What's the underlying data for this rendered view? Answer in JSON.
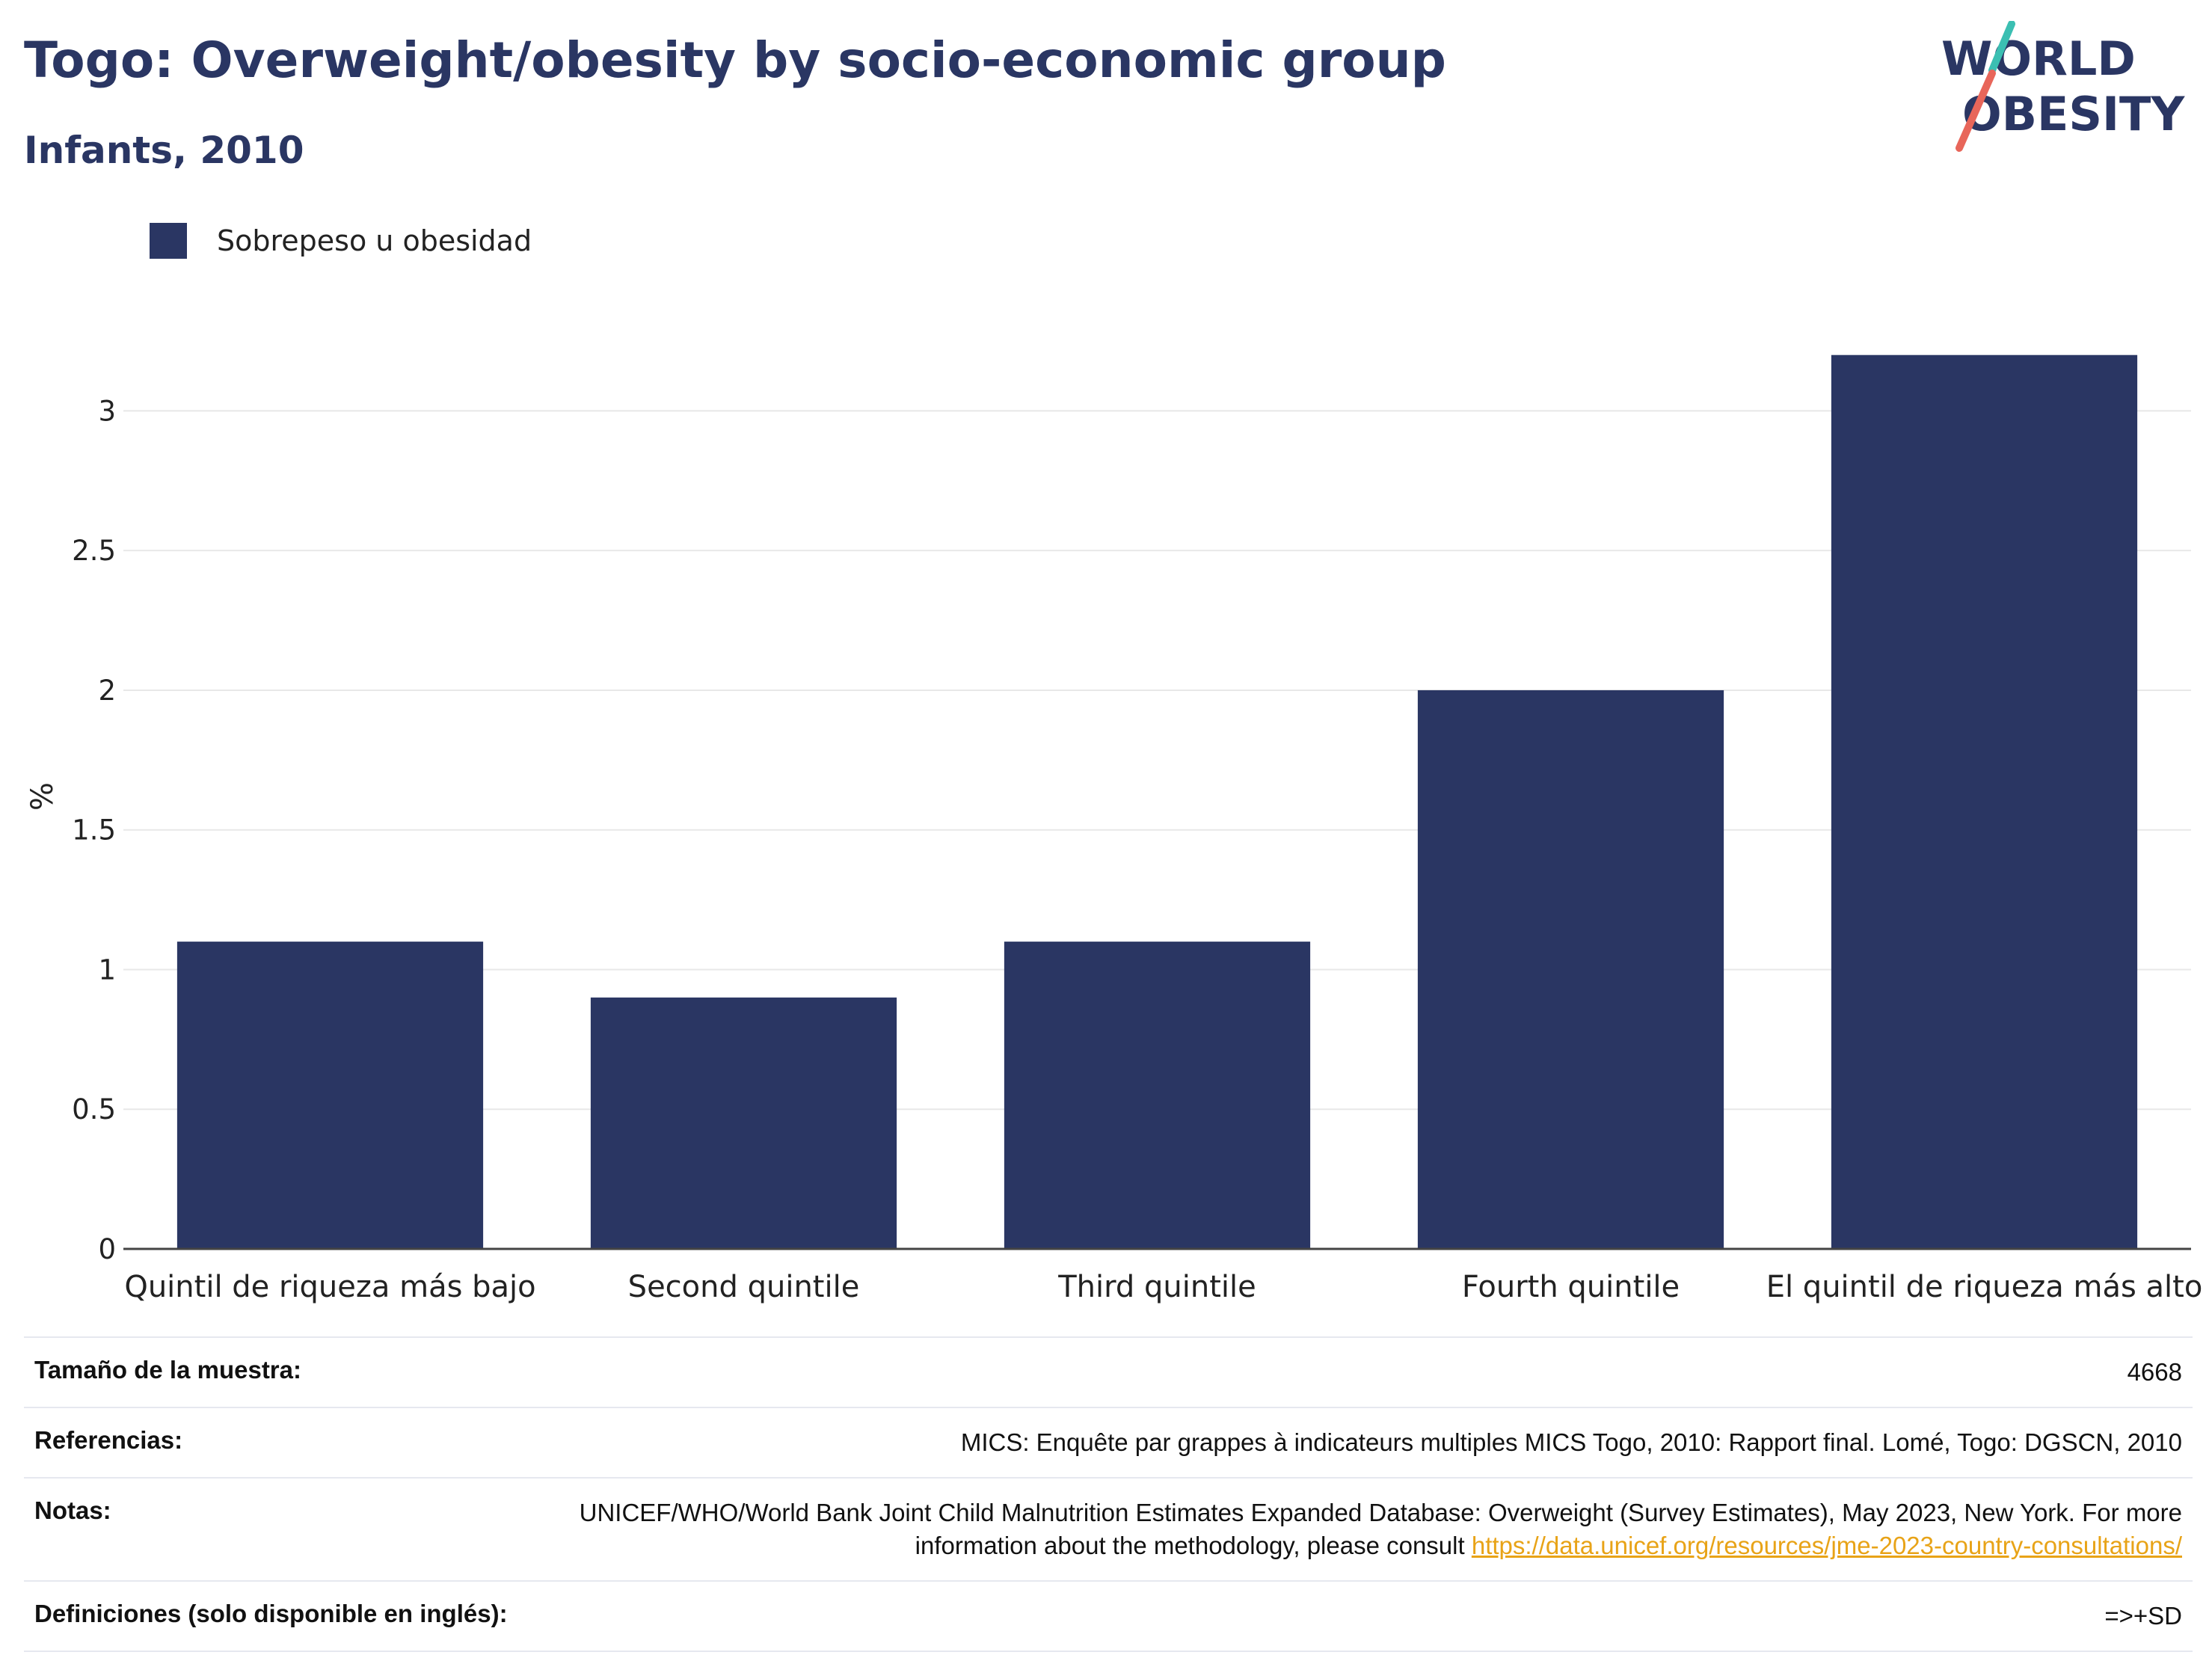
{
  "header": {
    "title": "Togo: Overweight/obesity by socio-economic group",
    "subtitle": "Infants, 2010"
  },
  "logo": {
    "line1": "WORLD",
    "line2": "OBESITY",
    "colors": {
      "text": "#2a3663",
      "slash_teal": "#3bbfb2",
      "slash_coral": "#e8665a"
    }
  },
  "colors": {
    "bar": "#2a3663",
    "axis": "#444444",
    "grid": "#e8e8e8",
    "link": "#e8a317"
  },
  "chart_data": {
    "type": "bar",
    "categories": [
      "Quintil de riqueza más bajo",
      "Second quintile",
      "Third quintile",
      "Fourth quintile",
      "El quintil de riqueza más alto"
    ],
    "series": [
      {
        "name": "Sobrepeso u obesidad",
        "values": [
          1.1,
          0.9,
          1.1,
          2.0,
          3.2
        ]
      }
    ],
    "ylabel": "%",
    "ylim": [
      0,
      3.4
    ],
    "yticks": [
      0,
      0.5,
      1,
      1.5,
      2,
      2.5,
      3
    ],
    "grid": true,
    "legend": "top-left"
  },
  "info": {
    "sample_label": "Tamaño de la muestra:",
    "sample_value": "4668",
    "refs_label": "Referencias:",
    "refs_value": "MICS: Enquête par grappes à indicateurs multiples MICS Togo, 2010: Rapport final. Lomé, Togo: DGSCN, 2010",
    "notes_label": "Notas:",
    "notes_value_1": "UNICEF/WHO/World Bank Joint Child Malnutrition Estimates Expanded Database: Overweight (Survey Estimates), May 2023, New York. For more information about the methodology, please consult ",
    "notes_link": "https://data.unicef.org/resources/jme-2023-country-consultations/",
    "defs_label": "Definiciones (solo disponible en inglés):",
    "defs_value": "=>+SD"
  }
}
